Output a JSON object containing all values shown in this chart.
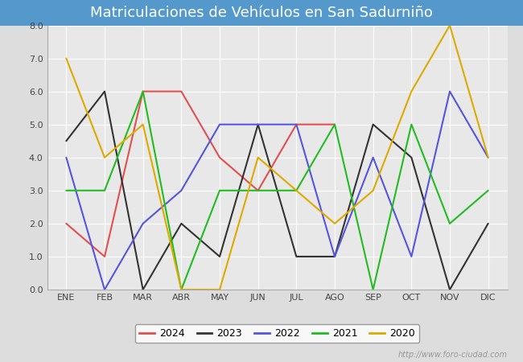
{
  "title": "Matriculaciones de Vehículos en San Sadurniño",
  "months": [
    "ENE",
    "FEB",
    "MAR",
    "ABR",
    "MAY",
    "JUN",
    "JUL",
    "AGO",
    "SEP",
    "OCT",
    "NOV",
    "DIC"
  ],
  "series": {
    "2024": {
      "values": [
        2,
        1,
        6,
        6,
        4,
        3,
        5,
        5,
        null,
        null,
        null,
        null
      ],
      "color": "#e05050",
      "label": "2024"
    },
    "2023": {
      "values": [
        4.5,
        6,
        0,
        2,
        1,
        5,
        1,
        1,
        5,
        4,
        0,
        2
      ],
      "color": "#333333",
      "label": "2023"
    },
    "2022": {
      "values": [
        4,
        0,
        2,
        3,
        5,
        5,
        5,
        1,
        4,
        1,
        6,
        4
      ],
      "color": "#5555dd",
      "label": "2022"
    },
    "2021": {
      "values": [
        3,
        3,
        6,
        0,
        3,
        3,
        3,
        5,
        0,
        5,
        2,
        3
      ],
      "color": "#22bb22",
      "label": "2021"
    },
    "2020": {
      "values": [
        7,
        4,
        5,
        0,
        0,
        4,
        3,
        2,
        3,
        6,
        8,
        4
      ],
      "color": "#ddaa00",
      "label": "2020"
    }
  },
  "ylim": [
    0,
    8.0
  ],
  "yticks": [
    0.0,
    1.0,
    2.0,
    3.0,
    4.0,
    5.0,
    6.0,
    7.0,
    8.0
  ],
  "fig_bg_color": "#dddddd",
  "plot_bg_color": "#e8e8e8",
  "title_bg_color": "#5599cc",
  "title_color": "white",
  "title_fontsize": 13,
  "grid_color": "#ffffff",
  "tick_fontsize": 8,
  "line_width": 1.5,
  "watermark": "http://www.foro-ciudad.com",
  "legend_order": [
    "2024",
    "2023",
    "2022",
    "2021",
    "2020"
  ]
}
